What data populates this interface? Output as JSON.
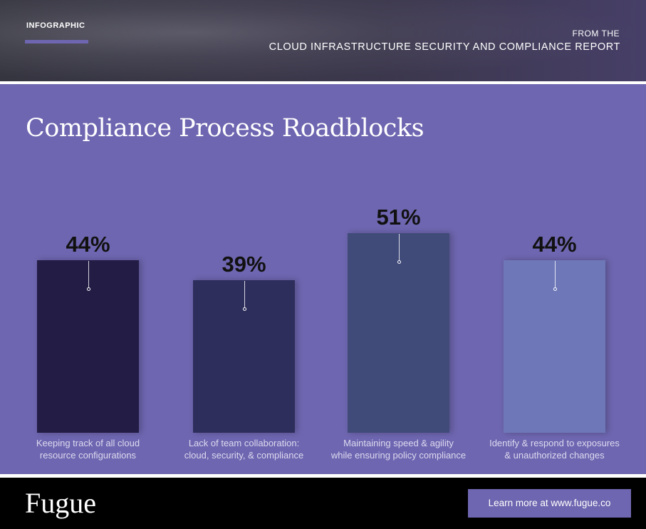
{
  "header": {
    "tag": "INFOGRAPHIC",
    "from": "FROM THE",
    "report": "CLOUD INFRASTRUCTURE SECURITY AND COMPLIANCE REPORT"
  },
  "chart_data": {
    "type": "bar",
    "title": "Compliance Process Roadblocks",
    "categories": [
      "Keeping track of all cloud\nresource configurations",
      "Lack of team collaboration:\ncloud, security, & compliance",
      "Maintaining speed & agility\nwhile ensuring policy compliance",
      "Identify & respond to exposures\n& unauthorized changes"
    ],
    "values": [
      44,
      39,
      51,
      44
    ],
    "value_labels": [
      "44%",
      "39%",
      "51%",
      "44%"
    ],
    "colors": [
      "#231c44",
      "#2e2e5c",
      "#414b7a",
      "#6e78b8"
    ]
  },
  "footer": {
    "brand": "Fugue",
    "link": "Learn more at www.fugue.co"
  }
}
